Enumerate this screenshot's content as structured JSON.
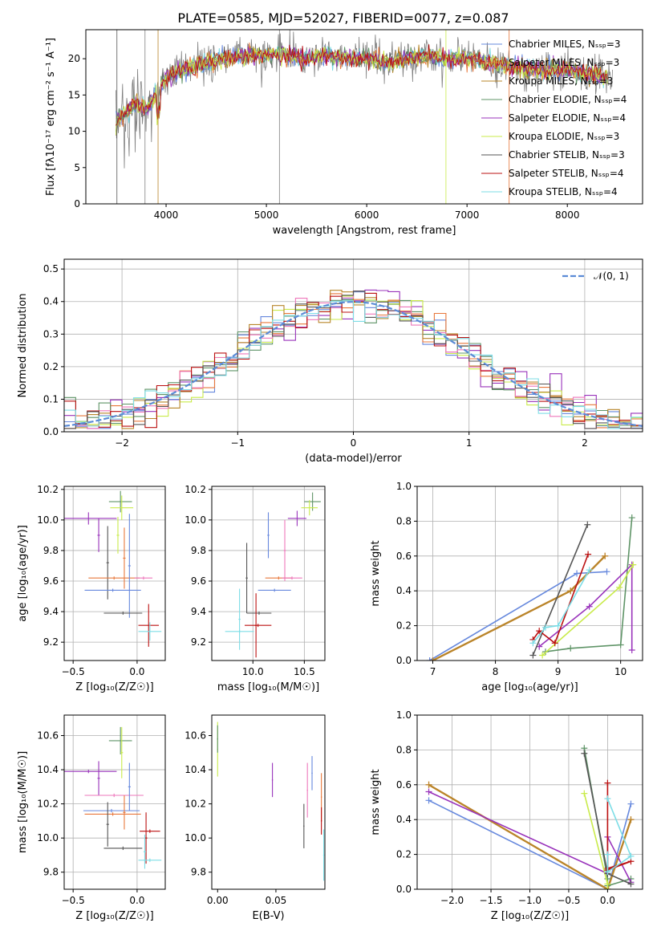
{
  "colors": [
    "#6688dd",
    "#e8773a",
    "#b8862a",
    "#5f9467",
    "#9933bb",
    "#c9eb4a",
    "#555555",
    "#bb1111",
    "#7ddde6",
    "#ee77bb"
  ],
  "chart_data": [
    {
      "id": "spectrum",
      "type": "line",
      "title": "PLATE=0585, MJD=52027, FIBERID=0077, z=0.087",
      "xlabel": "wavelength [Angstrom, rest frame]",
      "ylabel": "Flux [fλ10⁻¹⁷ erg cm⁻² s⁻¹ A⁻¹]",
      "xlim": [
        3200,
        8750
      ],
      "ylim": [
        0,
        24
      ],
      "xticks": [
        4000,
        5000,
        6000,
        7000,
        8000
      ],
      "yticks": [
        0,
        5,
        10,
        15,
        20
      ],
      "grid": false,
      "legend_position": "top-right",
      "series": [
        {
          "name": "Chabrier MILES, N_SSP=3"
        },
        {
          "name": "Salpeter MILES, N_SSP=3"
        },
        {
          "name": "Kroupa MILES, N_SSP=3"
        },
        {
          "name": "Chabrier ELODIE, N_SSP=4"
        },
        {
          "name": "Salpeter ELODIE, N_SSP=4"
        },
        {
          "name": "Kroupa ELODIE, N_SSP=3"
        },
        {
          "name": "Chabrier STELIB, N_SSP=3"
        },
        {
          "name": "Salpeter STELIB, N_SSP=4"
        },
        {
          "name": "Kroupa STELIB, N_SSP=4"
        }
      ],
      "data_envelope": {
        "x": [
          3500,
          3600,
          3700,
          3800,
          3900,
          4000,
          4200,
          4400,
          4600,
          4800,
          5000,
          5200,
          5400,
          5600,
          5800,
          6000,
          6200,
          6400,
          6600,
          6800,
          7000,
          7200,
          7400,
          7600,
          7800,
          8000,
          8200,
          8400
        ],
        "y": [
          11.5,
          12.5,
          14,
          13,
          15,
          17.5,
          18.5,
          19.5,
          20,
          20.5,
          20.5,
          20.5,
          20,
          20.5,
          20,
          20,
          19.5,
          20,
          20.5,
          20,
          20,
          19.5,
          19,
          18.5,
          18.5,
          18.5,
          18,
          17.5
        ]
      }
    },
    {
      "id": "residuals",
      "type": "histogram",
      "xlabel": "(data-model)/error",
      "ylabel": "Normed distribution",
      "xlim": [
        -2.5,
        2.5
      ],
      "ylim": [
        0,
        0.53
      ],
      "xticks": [
        -2,
        -1,
        0,
        1,
        2
      ],
      "yticks": [
        0.0,
        0.1,
        0.2,
        0.3,
        0.4,
        0.5
      ],
      "grid": true,
      "legend": "𝒩(0, 1)",
      "legend_position": "top-right",
      "bin_width": 0.1
    },
    {
      "id": "age-vs-Z",
      "type": "scatter",
      "xlabel": "Z [log₁₀(Z/Z☉)]",
      "ylabel": "age  [log₁₀(age/yr)]",
      "xlim": [
        -0.57,
        0.22
      ],
      "ylim": [
        9.08,
        10.22
      ],
      "xticks": [
        -0.5,
        0.0
      ],
      "yticks": [
        9.2,
        9.4,
        9.6,
        9.8,
        10.0,
        10.2
      ],
      "grid": true
    },
    {
      "id": "age-vs-mass",
      "type": "scatter",
      "xlabel": "mass [log₁₀(M/M☉)]",
      "xlim": [
        9.6,
        10.7
      ],
      "ylim": [
        9.08,
        10.22
      ],
      "xticks": [
        10.0,
        10.5
      ],
      "yticks": [
        9.2,
        9.4,
        9.6,
        9.8,
        10.0,
        10.2
      ],
      "grid": true
    },
    {
      "id": "massweight-vs-age",
      "type": "line",
      "xlabel": "age  [log₁₀(age/yr)]",
      "ylabel": "mass weight",
      "xlim": [
        6.75,
        10.35
      ],
      "ylim": [
        0,
        1.0
      ],
      "xticks": [
        7,
        8,
        9,
        10
      ],
      "yticks": [
        0.0,
        0.2,
        0.4,
        0.6,
        0.8,
        1.0
      ],
      "grid": true
    },
    {
      "id": "mass-vs-Z",
      "type": "scatter",
      "xlabel": "Z [log₁₀(Z/Z☉)]",
      "ylabel": "mass [log₁₀(M/M☉)]",
      "xlim": [
        -0.57,
        0.22
      ],
      "ylim": [
        9.7,
        10.72
      ],
      "xticks": [
        -0.5,
        0.0
      ],
      "yticks": [
        9.8,
        10.0,
        10.2,
        10.4,
        10.6
      ],
      "grid": true
    },
    {
      "id": "mass-vs-ebv",
      "type": "scatter",
      "xlabel": "E(B-V)",
      "xlim": [
        -0.005,
        0.092
      ],
      "ylim": [
        9.7,
        10.72
      ],
      "xticks": [
        0.0,
        0.05
      ],
      "yticks": [
        9.8,
        10.0,
        10.2,
        10.4,
        10.6
      ],
      "grid": false
    },
    {
      "id": "massweight-vs-Z",
      "type": "line",
      "xlabel": "Z [log₁₀(Z/Z☉)]",
      "ylabel": "mass weight",
      "xlim": [
        -2.45,
        0.45
      ],
      "ylim": [
        0,
        1.0
      ],
      "xticks": [
        -2.0,
        -1.5,
        -1.0,
        -0.5,
        0.0
      ],
      "yticks": [
        0.0,
        0.2,
        0.4,
        0.6,
        0.8,
        1.0
      ],
      "grid": true
    }
  ]
}
